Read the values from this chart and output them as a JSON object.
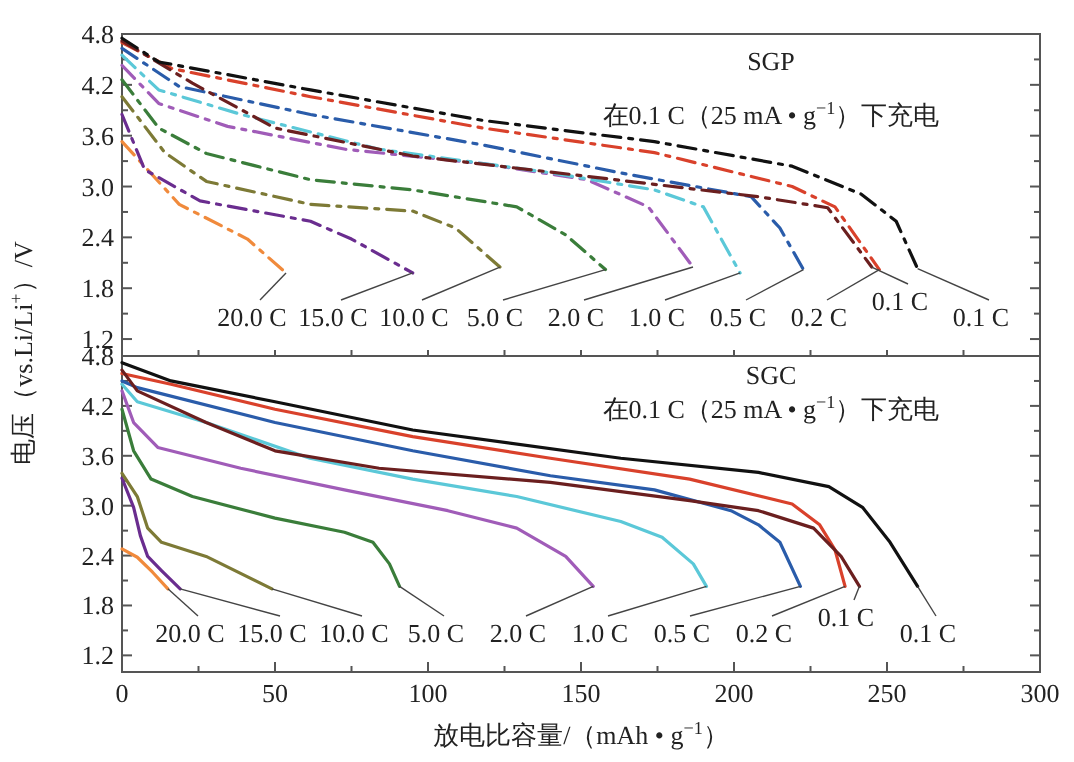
{
  "chart_data": [
    {
      "type": "line",
      "title": "SGP",
      "subtitle": "在0.1 C（25 mA • g$^{−1}$）下充电",
      "ylabel": "电压（vs.Li/Li$^{+}$）/V",
      "line_style": "dashdot",
      "tick_labels": "y",
      "xlim": [
        0,
        300
      ],
      "xticks": [
        {
          "value": 0,
          "label": null
        },
        {
          "value": 25,
          "label": null
        },
        {
          "value": 50,
          "label": null
        },
        {
          "value": 75,
          "label": null
        },
        {
          "value": 100,
          "label": null
        },
        {
          "value": 125,
          "label": null
        },
        {
          "value": 150,
          "label": null
        },
        {
          "value": 175,
          "label": null
        },
        {
          "value": 200,
          "label": null
        },
        {
          "value": 225,
          "label": null
        },
        {
          "value": 250,
          "label": null
        },
        {
          "value": 275,
          "label": null
        },
        {
          "value": 300,
          "label": null
        }
      ],
      "ylim": [
        1.0,
        4.8
      ],
      "yticks": [
        1.2,
        {
          "value": 1.5,
          "label": null
        },
        1.8,
        {
          "value": 2.1,
          "label": null
        },
        2.4,
        {
          "value": 2.7,
          "label": null
        },
        {
          "value": 3.0,
          "label": "3.0"
        },
        {
          "value": 3.3,
          "label": null
        },
        3.6,
        {
          "value": 3.9,
          "label": null
        },
        4.2,
        {
          "value": 4.5,
          "label": null
        },
        4.8
      ],
      "series": [
        {
          "name": "20.0 C",
          "color": "#f08a3c",
          "x": [
            0,
            18.7,
            41,
            53.6
          ],
          "values": [
            3.53,
            2.79,
            2.38,
            1.98
          ]
        },
        {
          "name": "15.0 C",
          "color": "#6a2d8f",
          "x": [
            0,
            7.4,
            25.5,
            61.6,
            75,
            95
          ],
          "values": [
            3.85,
            3.2,
            2.83,
            2.59,
            2.38,
            1.98
          ]
        },
        {
          "name": "10.0 C",
          "color": "#7d7a36",
          "x": [
            0,
            14,
            27.6,
            61.6,
            95,
            109,
            123.5
          ],
          "values": [
            4.06,
            3.4,
            3.06,
            2.79,
            2.71,
            2.51,
            2.05
          ]
        },
        {
          "name": "5.0 C",
          "color": "#3a7d3a",
          "x": [
            0,
            12,
            27.6,
            61.6,
            95,
            129,
            145,
            158
          ],
          "values": [
            4.26,
            3.69,
            3.39,
            3.08,
            2.96,
            2.76,
            2.43,
            2.02
          ]
        },
        {
          "name": "2.0 C",
          "color": "#a05cb8",
          "x": [
            0,
            12,
            34.5,
            73,
            118,
            152,
            172,
            186.6
          ],
          "values": [
            4.43,
            3.98,
            3.71,
            3.44,
            3.27,
            3.08,
            2.76,
            2.05
          ]
        },
        {
          "name": "1.0 C",
          "color": "#5bc8d8",
          "x": [
            0,
            12,
            39,
            84,
            140.5,
            174,
            190,
            202
          ],
          "values": [
            4.55,
            4.14,
            3.85,
            3.44,
            3.16,
            2.96,
            2.76,
            1.98
          ]
        },
        {
          "name": "0.5 C",
          "color": "#2a5caa",
          "x": [
            0,
            18.7,
            61.6,
            118,
            163,
            205.6,
            215,
            222.7
          ],
          "values": [
            4.63,
            4.18,
            3.85,
            3.49,
            3.16,
            2.88,
            2.51,
            2.02
          ]
        },
        {
          "name": "0.2 C",
          "color": "#d9412b",
          "x": [
            0,
            16.5,
            61.6,
            118,
            174,
            219,
            233,
            247.5
          ],
          "values": [
            4.7,
            4.39,
            4.06,
            3.69,
            3.4,
            3.0,
            2.76,
            2.02
          ]
        },
        {
          "name": "0.1 C",
          "color": "#6b1f1f",
          "x": [
            0,
            23,
            50,
            95,
            152,
            208,
            230.6,
            245
          ],
          "values": [
            4.72,
            4.22,
            3.69,
            3.36,
            3.12,
            2.88,
            2.75,
            2.05
          ]
        },
        {
          "name": "0.1 C",
          "color": "#111111",
          "x": [
            0,
            12,
            61.6,
            118,
            174,
            219,
            241.6,
            253,
            260
          ],
          "values": [
            4.75,
            4.47,
            4.14,
            3.78,
            3.53,
            3.24,
            2.91,
            2.59,
            2.03
          ]
        }
      ]
    },
    {
      "type": "line",
      "title": "SGC",
      "subtitle": "在0.1 C（25 mA • g$^{−1}$）下充电",
      "xlabel": "放电比容量/（mAh • g$^{−1}$）",
      "line_style": "solid",
      "xlim": [
        0,
        300
      ],
      "xticks": [
        0,
        {
          "value": 25,
          "label": null
        },
        50,
        {
          "value": 75,
          "label": null
        },
        100,
        {
          "value": 125,
          "label": null
        },
        150,
        {
          "value": 175,
          "label": null
        },
        200,
        {
          "value": 225,
          "label": null
        },
        250,
        {
          "value": 275,
          "label": null
        },
        300
      ],
      "ylim": [
        1.0,
        4.8
      ],
      "yticks": [
        1.2,
        {
          "value": 1.5,
          "label": null
        },
        1.8,
        {
          "value": 2.1,
          "label": null
        },
        2.4,
        {
          "value": 2.7,
          "label": null
        },
        {
          "value": 3.0,
          "label": "3.0"
        },
        {
          "value": 3.3,
          "label": null
        },
        3.6,
        {
          "value": 3.9,
          "label": null
        },
        4.2,
        {
          "value": 4.5,
          "label": null
        },
        4.8
      ],
      "series": [
        {
          "name": "20.0 C",
          "color": "#f08a3c",
          "x": [
            0,
            5,
            10,
            15
          ],
          "values": [
            2.48,
            2.38,
            2.2,
            2.0
          ]
        },
        {
          "name": "15.0 C",
          "color": "#6a2d8f",
          "x": [
            0,
            3.8,
            6,
            8.4,
            12.9,
            19
          ],
          "values": [
            3.33,
            2.98,
            2.64,
            2.39,
            2.22,
            2.0
          ]
        },
        {
          "name": "10.0 C",
          "color": "#7d7a36",
          "x": [
            0,
            5,
            8.4,
            12.9,
            27.5,
            49
          ],
          "values": [
            3.39,
            3.11,
            2.73,
            2.56,
            2.39,
            2.0
          ]
        },
        {
          "name": "5.0 C",
          "color": "#3a7d3a",
          "x": [
            0,
            3.8,
            9.5,
            23,
            50,
            72.7,
            82,
            87.4,
            90.7
          ],
          "values": [
            4.16,
            3.66,
            3.32,
            3.11,
            2.85,
            2.68,
            2.56,
            2.3,
            2.03
          ]
        },
        {
          "name": "2.0 C",
          "color": "#a05cb8",
          "x": [
            0,
            3.8,
            11.7,
            38.8,
            72.7,
            106.5,
            129,
            145,
            154
          ],
          "values": [
            4.38,
            4.0,
            3.7,
            3.45,
            3.19,
            2.94,
            2.73,
            2.39,
            2.03
          ]
        },
        {
          "name": "1.0 C",
          "color": "#5bc8d8",
          "x": [
            0,
            5,
            27.5,
            61.4,
            95,
            129,
            163,
            176.5,
            186.7,
            191
          ],
          "values": [
            4.46,
            4.25,
            4.0,
            3.57,
            3.32,
            3.11,
            2.81,
            2.62,
            2.3,
            2.03
          ]
        },
        {
          "name": "0.5 C",
          "color": "#2a5caa",
          "x": [
            0,
            5,
            50,
            95,
            140,
            174,
            199,
            208,
            215,
            221.7
          ],
          "values": [
            4.5,
            4.42,
            4.0,
            3.66,
            3.36,
            3.19,
            2.94,
            2.77,
            2.56,
            2.03
          ]
        },
        {
          "name": "0.2 C",
          "color": "#d9412b",
          "x": [
            0,
            16,
            50,
            95,
            140,
            185.5,
            219,
            228,
            233,
            236.3
          ],
          "values": [
            4.59,
            4.46,
            4.16,
            3.83,
            3.57,
            3.32,
            3.02,
            2.77,
            2.47,
            2.03
          ]
        },
        {
          "name": "0.1 C",
          "color": "#6b1f1f",
          "x": [
            0,
            5,
            27.5,
            50,
            84,
            140,
            185.5,
            208,
            226,
            235,
            241
          ],
          "values": [
            4.63,
            4.38,
            4.0,
            3.66,
            3.45,
            3.28,
            3.06,
            2.94,
            2.73,
            2.39,
            2.03
          ]
        },
        {
          "name": "0.1 C",
          "color": "#111111",
          "x": [
            0,
            16,
            50,
            95,
            163,
            208,
            231,
            242,
            251,
            260
          ],
          "values": [
            4.72,
            4.5,
            4.25,
            3.91,
            3.57,
            3.4,
            3.23,
            2.98,
            2.56,
            2.03
          ]
        }
      ]
    }
  ]
}
